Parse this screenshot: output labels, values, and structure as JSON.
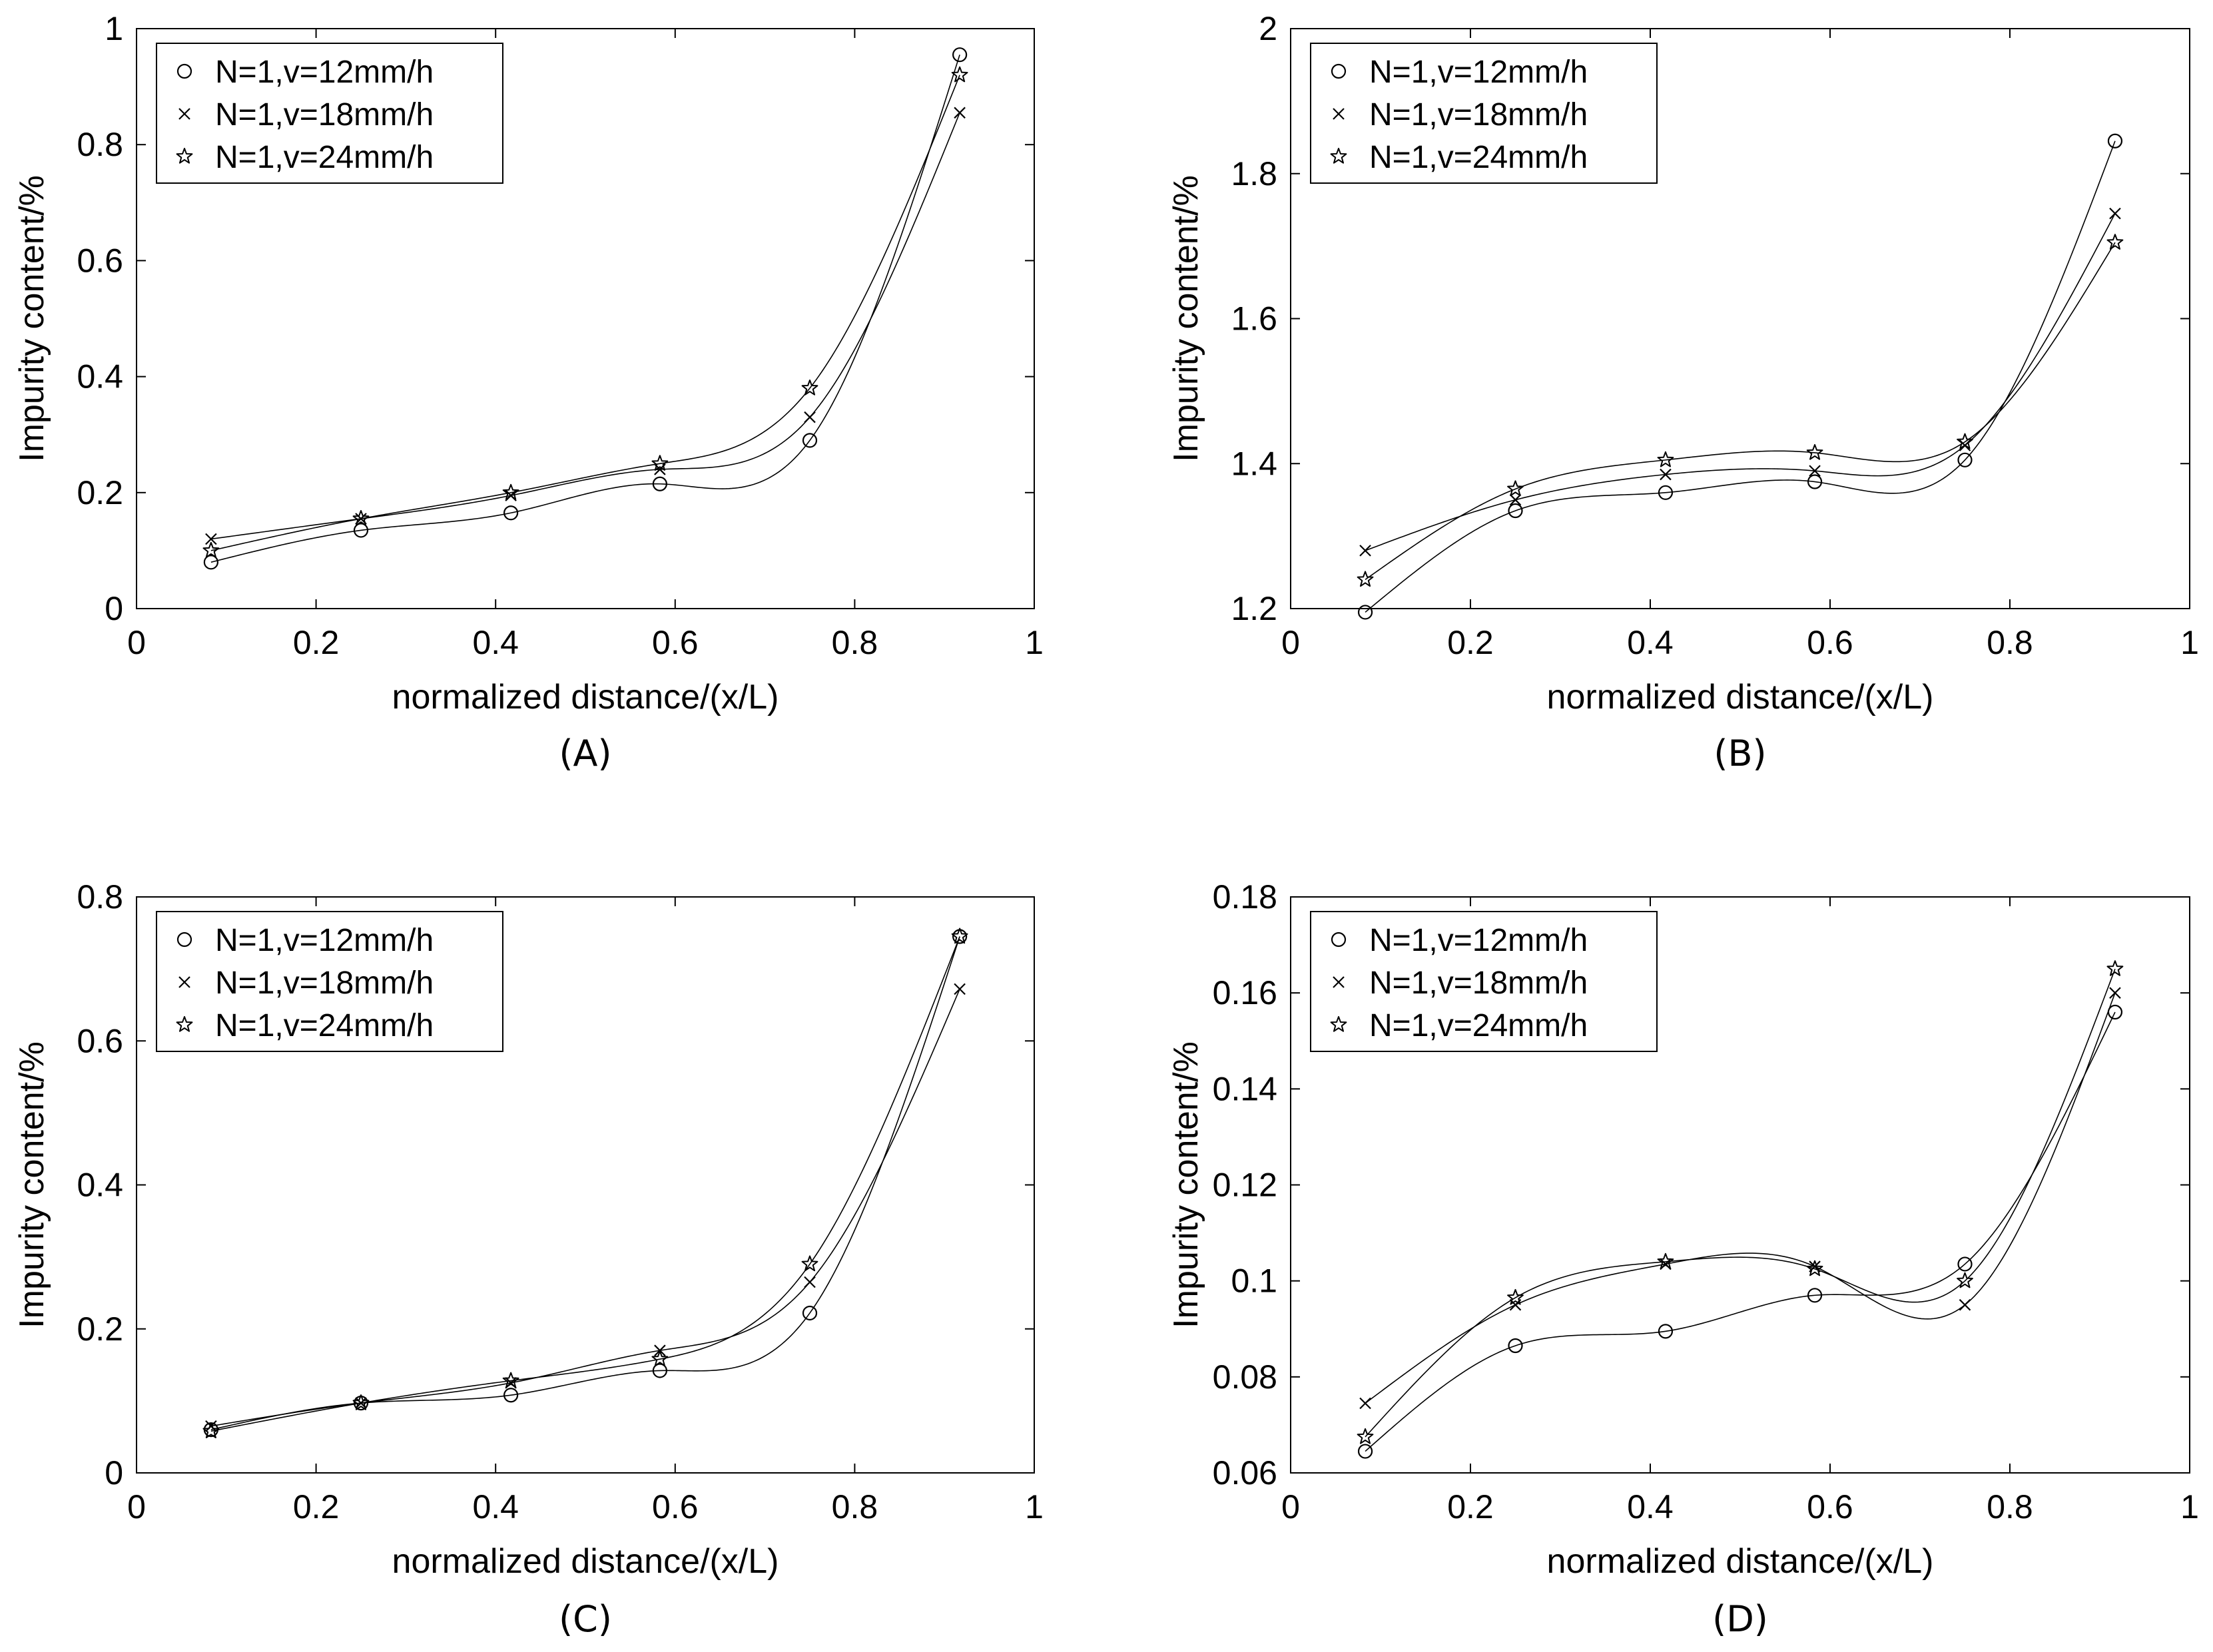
{
  "chart_data": [
    {
      "type": "line",
      "panel_label": "(A)",
      "xlabel": "normalized distance/(x/L)",
      "ylabel": "Impurity content/%",
      "xlim": [
        0,
        1
      ],
      "ylim": [
        0,
        1
      ],
      "xticks": [
        "0",
        "0.2",
        "0.4",
        "0.6",
        "0.8",
        "1"
      ],
      "yticks": [
        "0",
        "0.2",
        "0.4",
        "0.6",
        "0.8",
        "1"
      ],
      "legend_position": "top-left",
      "x": [
        0.083,
        0.25,
        0.417,
        0.583,
        0.75,
        0.917
      ],
      "series": [
        {
          "name": "N=1,v=12mm/h",
          "marker": "circle",
          "values": [
            0.08,
            0.135,
            0.165,
            0.215,
            0.29,
            0.955
          ]
        },
        {
          "name": "N=1,v=18mm/h",
          "marker": "x",
          "values": [
            0.12,
            0.155,
            0.195,
            0.24,
            0.33,
            0.855
          ]
        },
        {
          "name": "N=1,v=24mm/h",
          "marker": "star",
          "values": [
            0.1,
            0.155,
            0.2,
            0.25,
            0.38,
            0.92
          ]
        }
      ]
    },
    {
      "type": "line",
      "panel_label": "(B)",
      "xlabel": "normalized distance/(x/L)",
      "ylabel": "Impurity content/%",
      "xlim": [
        0,
        1
      ],
      "ylim": [
        1.2,
        2
      ],
      "xticks": [
        "0",
        "0.2",
        "0.4",
        "0.6",
        "0.8",
        "1"
      ],
      "yticks": [
        "1.2",
        "1.4",
        "1.6",
        "1.8",
        "2"
      ],
      "legend_position": "top-left",
      "x": [
        0.083,
        0.25,
        0.417,
        0.583,
        0.75,
        0.917
      ],
      "series": [
        {
          "name": "N=1,v=12mm/h",
          "marker": "circle",
          "values": [
            1.195,
            1.335,
            1.36,
            1.375,
            1.405,
            1.845
          ]
        },
        {
          "name": "N=1,v=18mm/h",
          "marker": "x",
          "values": [
            1.28,
            1.35,
            1.385,
            1.39,
            1.425,
            1.745
          ]
        },
        {
          "name": "N=1,v=24mm/h",
          "marker": "star",
          "values": [
            1.24,
            1.365,
            1.405,
            1.415,
            1.43,
            1.705
          ]
        }
      ]
    },
    {
      "type": "line",
      "panel_label": "(C)",
      "xlabel": "normalized distance/(x/L)",
      "ylabel": "Impurity content/%",
      "xlim": [
        0,
        1
      ],
      "ylim": [
        0,
        0.8
      ],
      "xticks": [
        "0",
        "0.2",
        "0.4",
        "0.6",
        "0.8",
        "1"
      ],
      "yticks": [
        "0",
        "0.2",
        "0.4",
        "0.6",
        "0.8"
      ],
      "legend_position": "top-left",
      "x": [
        0.083,
        0.25,
        0.417,
        0.583,
        0.75,
        0.917
      ],
      "series": [
        {
          "name": "N=1,v=12mm/h",
          "marker": "circle",
          "values": [
            0.06,
            0.097,
            0.108,
            0.142,
            0.222,
            0.745
          ]
        },
        {
          "name": "N=1,v=18mm/h",
          "marker": "x",
          "values": [
            0.065,
            0.097,
            0.125,
            0.17,
            0.265,
            0.672
          ]
        },
        {
          "name": "N=1,v=24mm/h",
          "marker": "star",
          "values": [
            0.058,
            0.097,
            0.128,
            0.158,
            0.29,
            0.745
          ]
        }
      ]
    },
    {
      "type": "line",
      "panel_label": "(D)",
      "xlabel": "normalized distance/(x/L)",
      "ylabel": "Impurity content/%",
      "xlim": [
        0,
        1
      ],
      "ylim": [
        0.06,
        0.18
      ],
      "xticks": [
        "0",
        "0.2",
        "0.4",
        "0.6",
        "0.8",
        "1"
      ],
      "yticks": [
        "0.06",
        "0.08",
        "0.1",
        "0.12",
        "0.14",
        "0.16",
        "0.18"
      ],
      "legend_position": "top-left",
      "x": [
        0.083,
        0.25,
        0.417,
        0.583,
        0.75,
        0.917
      ],
      "series": [
        {
          "name": "N=1,v=12mm/h",
          "marker": "circle",
          "values": [
            0.0645,
            0.0865,
            0.0895,
            0.097,
            0.1035,
            0.156
          ]
        },
        {
          "name": "N=1,v=18mm/h",
          "marker": "x",
          "values": [
            0.0745,
            0.095,
            0.1035,
            0.103,
            0.095,
            0.16
          ]
        },
        {
          "name": "N=1,v=24mm/h",
          "marker": "star",
          "values": [
            0.0675,
            0.0965,
            0.104,
            0.1025,
            0.1,
            0.165
          ]
        }
      ]
    }
  ]
}
